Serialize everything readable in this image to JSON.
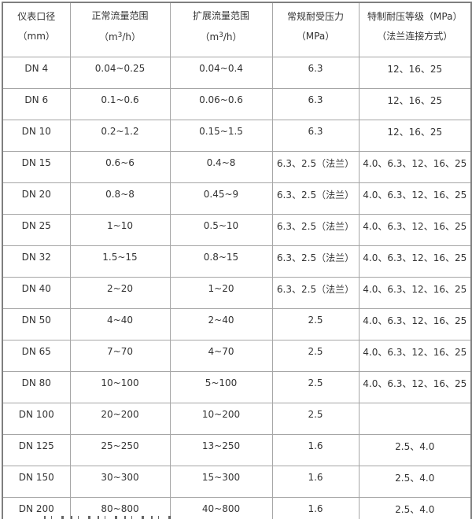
{
  "colors": {
    "inner_border": "#a6a6a6",
    "outer_border": "#7f7f7f",
    "text": "#333333",
    "background": "#ffffff"
  },
  "table": {
    "headers": [
      {
        "text": "仪表口径（mm）"
      },
      {
        "prefix": "正常流量范围（m",
        "sup": "3",
        "suffix": "/h）"
      },
      {
        "prefix": "扩展流量范围（m",
        "sup": "3",
        "suffix": "/h）"
      },
      {
        "text": "常规耐受压力（MPa）"
      },
      {
        "text": "特制耐压等级（MPa）（法兰连接方式）"
      }
    ],
    "rows": [
      [
        "DN 4",
        "0.04~0.25",
        "0.04~0.4",
        "6.3",
        "12、16、25"
      ],
      [
        "DN 6",
        "0.1~0.6",
        "0.06~0.6",
        "6.3",
        "12、16、25"
      ],
      [
        "DN 10",
        "0.2~1.2",
        "0.15~1.5",
        "6.3",
        "12、16、25"
      ],
      [
        "DN 15",
        "0.6~6",
        "0.4~8",
        "6.3、2.5（法兰）",
        "4.0、6.3、12、16、25"
      ],
      [
        "DN 20",
        "0.8~8",
        "0.45~9",
        "6.3、2.5（法兰）",
        "4.0、6.3、12、16、25"
      ],
      [
        "DN 25",
        "1~10",
        "0.5~10",
        "6.3、2.5（法兰）",
        "4.0、6.3、12、16、25"
      ],
      [
        "DN 32",
        "1.5~15",
        "0.8~15",
        "6.3、2.5（法兰）",
        "4.0、6.3、12、16、25"
      ],
      [
        "DN 40",
        "2~20",
        "1~20",
        "6.3、2.5（法兰）",
        "4.0、6.3、12、16、25"
      ],
      [
        "DN 50",
        "4~40",
        "2~40",
        "2.5",
        "4.0、6.3、12、16、25"
      ],
      [
        "DN 65",
        "7~70",
        "4~70",
        "2.5",
        "4.0、6.3、12、16、25"
      ],
      [
        "DN 80",
        "10~100",
        "5~100",
        "2.5",
        "4.0、6.3、12、16、25"
      ],
      [
        "DN 100",
        "20~200",
        "10~200",
        "2.5",
        ""
      ],
      [
        "DN 125",
        "25~250",
        "13~250",
        "1.6",
        "2.5、4.0"
      ],
      [
        "DN 150",
        "30~300",
        "15~300",
        "1.6",
        "2.5、4.0"
      ],
      [
        "DN 200",
        "80~800",
        "40~800",
        "1.6",
        "2.5、4.0"
      ]
    ]
  }
}
